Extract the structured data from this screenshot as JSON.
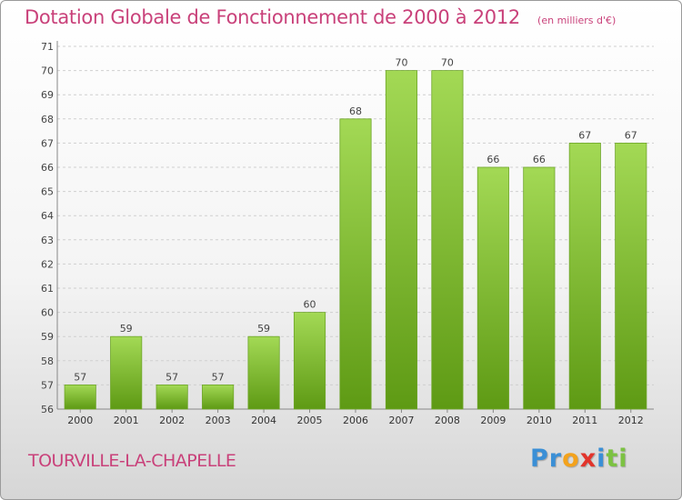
{
  "chart_data": {
    "type": "bar",
    "title": "Dotation Globale de Fonctionnement de 2000 à 2012",
    "subtitle": "(en milliers d'€)",
    "xlabel": "",
    "ylabel": "",
    "categories": [
      "2000",
      "2001",
      "2002",
      "2003",
      "2004",
      "2005",
      "2006",
      "2007",
      "2008",
      "2009",
      "2010",
      "2011",
      "2012"
    ],
    "values": [
      57,
      59,
      57,
      57,
      59,
      60,
      68,
      70,
      70,
      66,
      66,
      67,
      67
    ],
    "ylim": [
      56,
      71
    ],
    "yticks": [
      56,
      57,
      58,
      59,
      60,
      61,
      62,
      63,
      64,
      65,
      66,
      67,
      68,
      69,
      70,
      71
    ],
    "grid": true,
    "bar_color": "#7fbf2e",
    "legend": "none"
  },
  "footer": {
    "commune": "TOURVILLE-LA-CHAPELLE",
    "logo_letters": [
      {
        "ch": "P",
        "color": "#3a8fd6"
      },
      {
        "ch": "r",
        "color": "#3a8fd6"
      },
      {
        "ch": "o",
        "color": "#f3a21c"
      },
      {
        "ch": "x",
        "color": "#e2342b"
      },
      {
        "ch": "i",
        "color": "#3a8fd6"
      },
      {
        "ch": "t",
        "color": "#7cc242"
      },
      {
        "ch": "i",
        "color": "#7cc242"
      }
    ]
  }
}
